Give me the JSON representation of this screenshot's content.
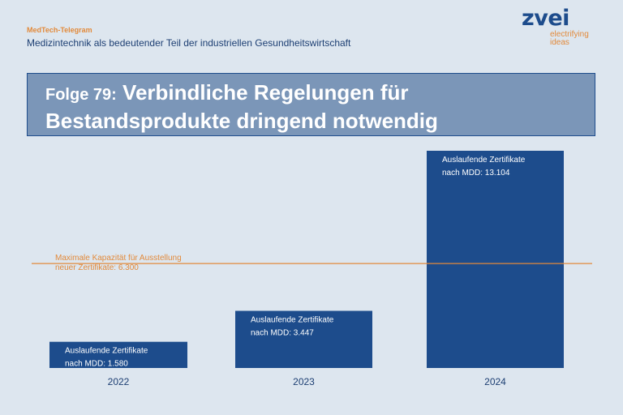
{
  "header": {
    "kicker": "MedTech-Telegram",
    "subtitle": "Medizintechnik als bedeutender Teil der industriellen Gesundheitswirtschaft"
  },
  "logo": {
    "brand": "zvei",
    "tagline_1": "electrifying",
    "tagline_2": "ideas"
  },
  "title": {
    "prefix": "Folge 79:",
    "text": "Verbindliche Regelungen für Bestandsprodukte dringend notwendig"
  },
  "colors": {
    "background": "#dde6ef",
    "bar": "#1d4c8c",
    "threshold": "#e28a3b",
    "title_box": "#7b96b8"
  },
  "chart_data": {
    "type": "bar",
    "categories": [
      "2022",
      "2023",
      "2024"
    ],
    "values": [
      1580,
      3447,
      13104
    ],
    "bar_labels": [
      [
        "Auslaufende Zertifikate",
        "nach MDD: 1.580"
      ],
      [
        "Auslaufende Zertifikate",
        "nach MDD: 3.447"
      ],
      [
        "Auslaufende Zertifikate",
        "nach MDD: 13.104"
      ]
    ],
    "threshold": {
      "value": 6300,
      "label_lines": [
        "Maximale Kapazität für Ausstellung",
        "neuer Zertifikate: 6.300"
      ]
    },
    "ylim": [
      0,
      13104
    ],
    "grid": false,
    "legend": "none"
  }
}
